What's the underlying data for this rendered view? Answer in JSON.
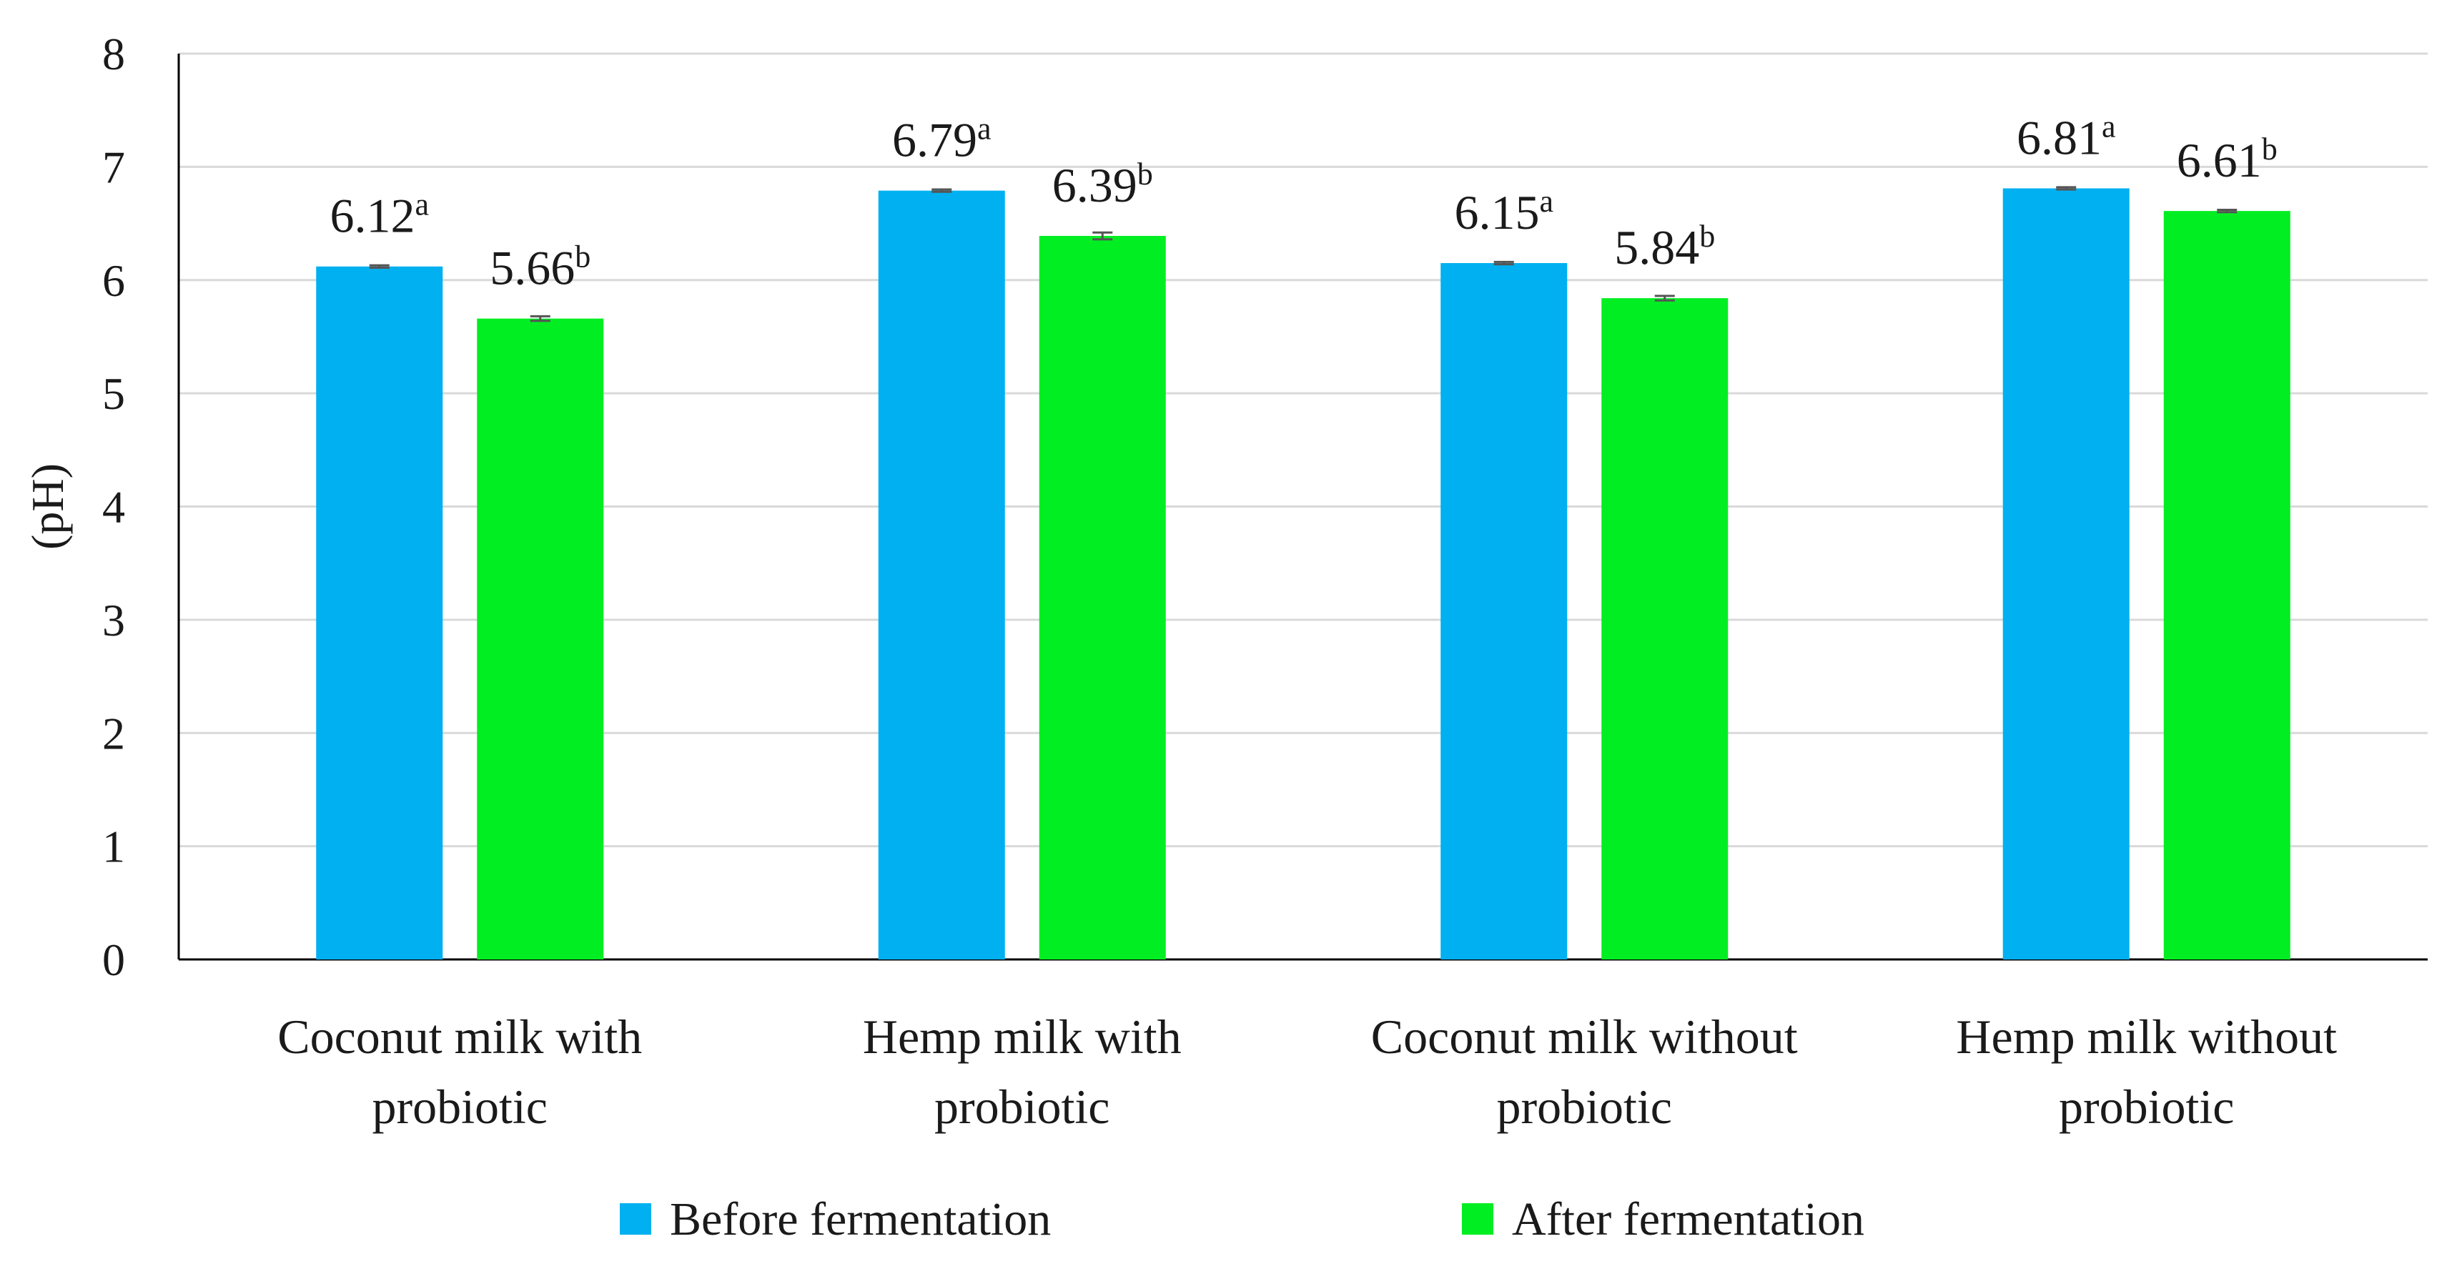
{
  "chart_data": {
    "type": "bar",
    "title": "",
    "xlabel": "",
    "ylabel": "(pH)",
    "ylim": [
      0,
      8
    ],
    "yticks": [
      0,
      1,
      2,
      3,
      4,
      5,
      6,
      7,
      8
    ],
    "grid": true,
    "legend_position": "bottom",
    "categories": [
      {
        "line1": "Coconut milk with",
        "line2": "probiotic"
      },
      {
        "line1": "Hemp milk with",
        "line2": "probiotic"
      },
      {
        "line1": "Coconut milk without",
        "line2": "probiotic"
      },
      {
        "line1": "Hemp milk without",
        "line2": "probiotic"
      }
    ],
    "series": [
      {
        "name": "Before fermentation",
        "color": "#00b0f0",
        "values": [
          6.12,
          6.79,
          6.15,
          6.81
        ],
        "labels": [
          "6.12",
          "6.79",
          "6.15",
          "6.81"
        ],
        "superscripts": [
          "a",
          "a",
          "a",
          "a"
        ],
        "errors": [
          0.01,
          0.01,
          0.01,
          0.01
        ]
      },
      {
        "name": "After fermentation",
        "color": "#00ee22",
        "values": [
          5.66,
          6.39,
          5.84,
          6.61
        ],
        "labels": [
          "5.66",
          "6.39",
          "5.84",
          "6.61"
        ],
        "superscripts": [
          "b",
          "b",
          "b",
          "b"
        ],
        "errors": [
          0.02,
          0.03,
          0.02,
          0.01
        ]
      }
    ]
  }
}
